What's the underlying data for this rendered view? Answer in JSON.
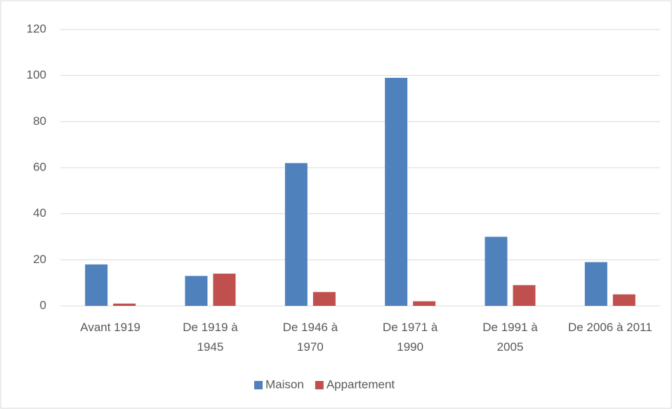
{
  "chart_data": {
    "type": "bar",
    "categories": [
      "Avant 1919",
      "De 1919 à 1945",
      "De 1946 à 1970",
      "De 1971 à 1990",
      "De 1991 à 2005",
      "De 2006 à 2011"
    ],
    "series": [
      {
        "name": "Maison",
        "color": "#4f81bd",
        "values": [
          18,
          13,
          62,
          99,
          30,
          19
        ]
      },
      {
        "name": "Appartement",
        "color": "#c0504d",
        "values": [
          1,
          14,
          6,
          2,
          9,
          5
        ]
      }
    ],
    "ylim": [
      0,
      120
    ],
    "yticks": [
      0,
      20,
      40,
      60,
      80,
      100,
      120
    ],
    "grid": true,
    "legend": "bottom"
  }
}
